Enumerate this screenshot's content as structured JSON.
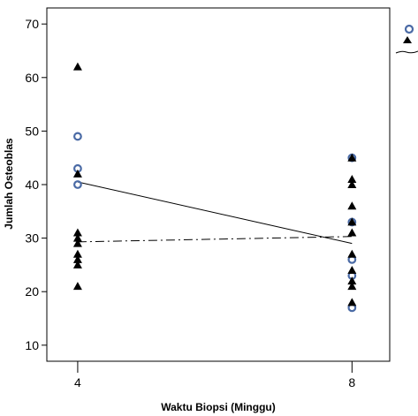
{
  "chart_data": {
    "type": "scatter",
    "xlabel": "Waktu Biopsi (Minggu)",
    "ylabel": "Jumlah Osteoblas",
    "x_ticks": [
      4,
      8
    ],
    "y_ticks": [
      10,
      20,
      30,
      40,
      50,
      60,
      70
    ],
    "xlim": [
      3.55,
      8.55
    ],
    "ylim": [
      7,
      73
    ],
    "grid": false,
    "legend": "top-right (partially cropped)",
    "series": [
      {
        "marker": "open-circle",
        "color": "#4a6aa5",
        "points": [
          {
            "x": 4,
            "y": 49
          },
          {
            "x": 4,
            "y": 43
          },
          {
            "x": 4,
            "y": 40
          },
          {
            "x": 8,
            "y": 45
          },
          {
            "x": 8,
            "y": 33
          },
          {
            "x": 8,
            "y": 26
          },
          {
            "x": 8,
            "y": 23
          },
          {
            "x": 8,
            "y": 17
          }
        ],
        "fit_line": {
          "style": "solid",
          "from": {
            "x": 4,
            "y": 40.5
          },
          "to": {
            "x": 8,
            "y": 29
          }
        }
      },
      {
        "marker": "filled-triangle",
        "color": "#000000",
        "points": [
          {
            "x": 4,
            "y": 62
          },
          {
            "x": 4,
            "y": 42
          },
          {
            "x": 4,
            "y": 31
          },
          {
            "x": 4,
            "y": 30
          },
          {
            "x": 4,
            "y": 29
          },
          {
            "x": 4,
            "y": 27
          },
          {
            "x": 4,
            "y": 26
          },
          {
            "x": 4,
            "y": 25
          },
          {
            "x": 4,
            "y": 21
          },
          {
            "x": 8,
            "y": 45
          },
          {
            "x": 8,
            "y": 41
          },
          {
            "x": 8,
            "y": 40
          },
          {
            "x": 8,
            "y": 36
          },
          {
            "x": 8,
            "y": 33
          },
          {
            "x": 8,
            "y": 31
          },
          {
            "x": 8,
            "y": 27
          },
          {
            "x": 8,
            "y": 24
          },
          {
            "x": 8,
            "y": 22
          },
          {
            "x": 8,
            "y": 21
          },
          {
            "x": 8,
            "y": 18
          }
        ],
        "fit_line": {
          "style": "dash-dot",
          "from": {
            "x": 4,
            "y": 29.3
          },
          "to": {
            "x": 8,
            "y": 30.3
          }
        }
      }
    ]
  }
}
